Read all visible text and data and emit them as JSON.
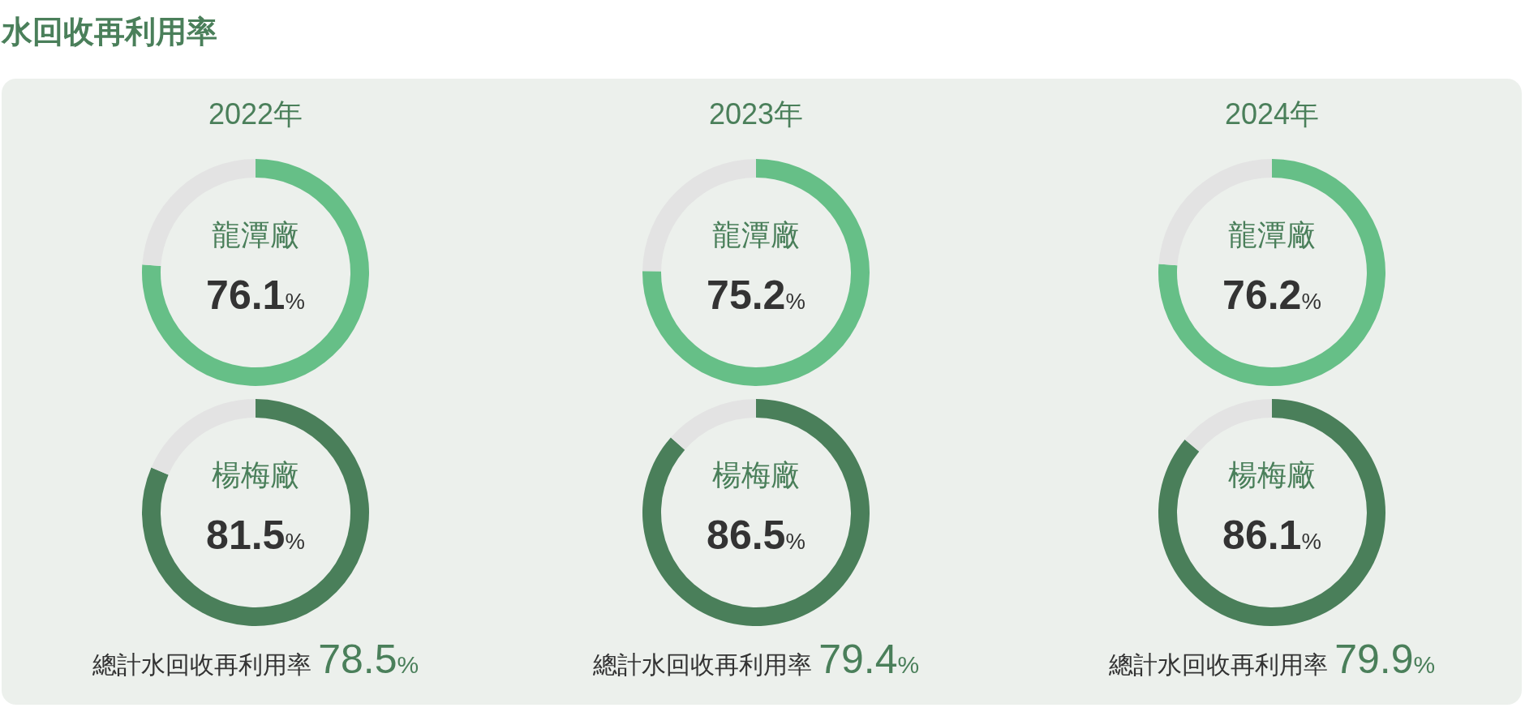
{
  "chart_data": [
    {
      "type": "other",
      "title": "水回收再利用率"
    },
    {
      "type": "donut",
      "title": "2022年",
      "categories": [
        "龍潭廠",
        null
      ],
      "values": [
        76.1,
        23.9
      ],
      "colors": [
        "#66bf87",
        "#e3e3e3"
      ],
      "value_labels": [
        "76.1%",
        null
      ]
    },
    {
      "type": "donut",
      "title": "2023年",
      "categories": [
        "龍潭廠",
        null
      ],
      "values": [
        75.2,
        24.8
      ],
      "colors": [
        "#66bf87",
        "#e3e3e3"
      ],
      "value_labels": [
        "75.2%",
        null
      ]
    },
    {
      "type": "donut",
      "title": "2024年",
      "categories": [
        "龍潭廠",
        null
      ],
      "values": [
        76.2,
        23.8
      ],
      "colors": [
        "#66bf87",
        "#e3e3e3"
      ],
      "value_labels": [
        "76.2%",
        null
      ]
    },
    {
      "type": "donut",
      "categories": [
        "楊梅廠",
        null
      ],
      "values": [
        81.5,
        18.5
      ],
      "colors": [
        "#4a7f5a",
        "#e3e3e3"
      ],
      "value_labels": [
        "81.5%",
        null
      ],
      "annotations": [
        "總計水回收再利用率 78.5%"
      ]
    },
    {
      "type": "donut",
      "categories": [
        "楊梅廠",
        null
      ],
      "values": [
        86.5,
        13.5
      ],
      "colors": [
        "#4a7f5a",
        "#e3e3e3"
      ],
      "value_labels": [
        "86.5%",
        null
      ],
      "annotations": [
        "總計水回收再利用率 79.4%"
      ]
    },
    {
      "type": "donut",
      "categories": [
        "楊梅廠",
        null
      ],
      "values": [
        86.1,
        13.9
      ],
      "colors": [
        "#4a7f5a",
        "#e3e3e3"
      ],
      "value_labels": [
        "86.1%",
        null
      ],
      "annotations": [
        "總計水回收再利用率 79.9%"
      ]
    }
  ]
}
